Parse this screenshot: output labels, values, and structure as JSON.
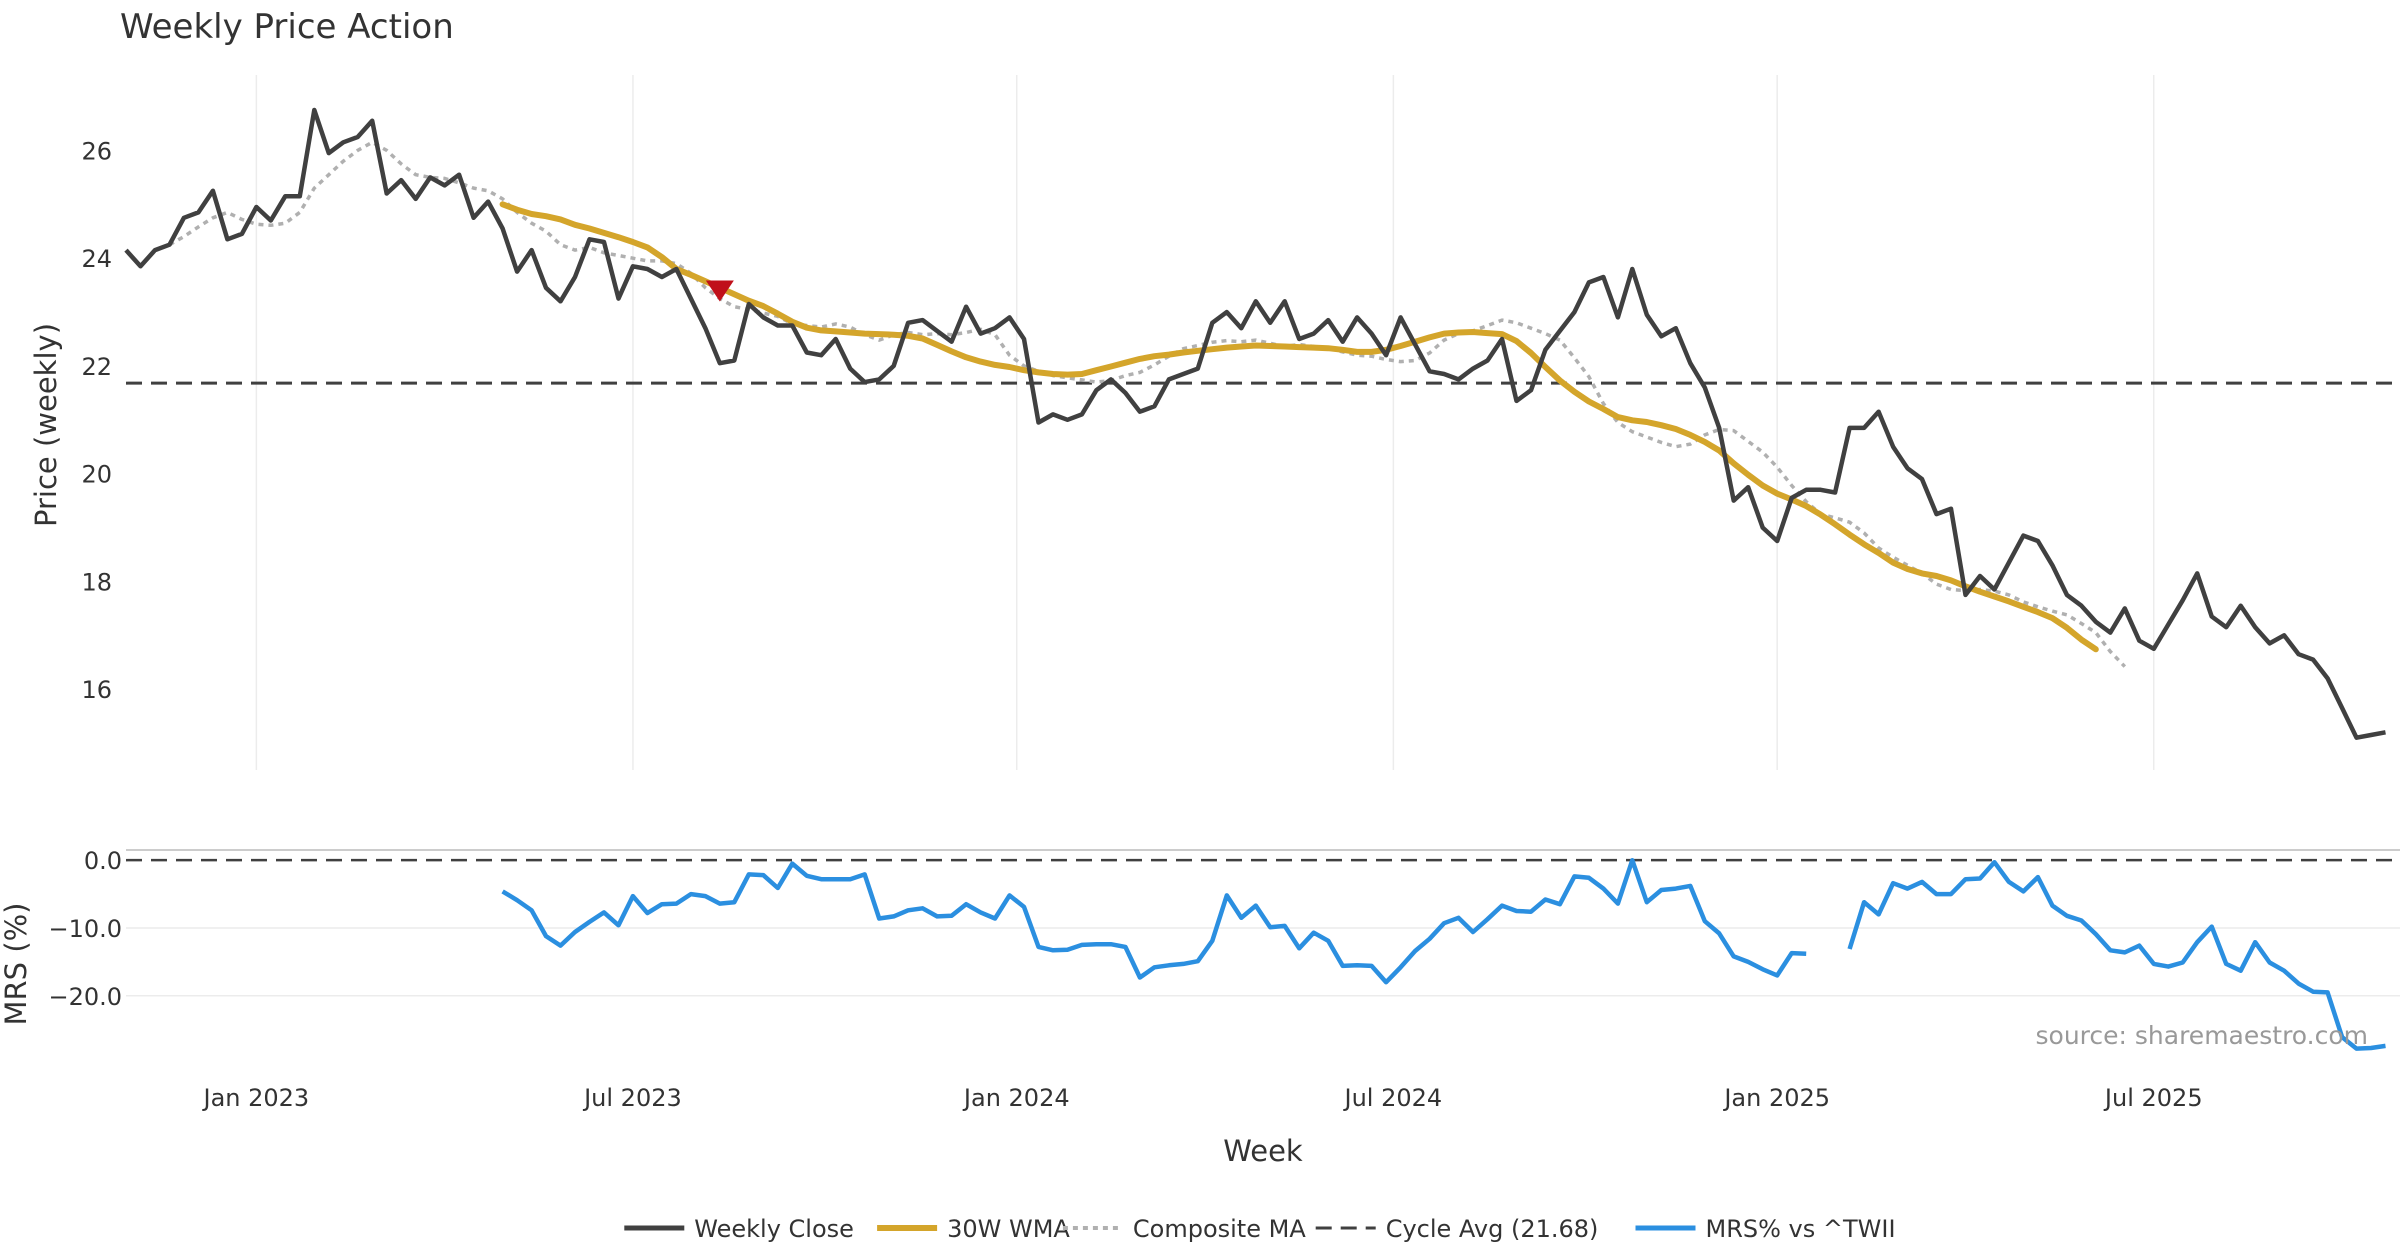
{
  "chart_data": {
    "type": "line",
    "title": "Weekly Price Action",
    "xlabel": "Week",
    "ylabel": "Price (weekly)",
    "ylabel2": "MRS (%)",
    "source": "source: sharemaestro.com",
    "x_ticks": [
      {
        "label": "Jan 2023",
        "week": 9
      },
      {
        "label": "Jul 2023",
        "week": 35
      },
      {
        "label": "Jan 2024",
        "week": 61.5
      },
      {
        "label": "Jul 2024",
        "week": 87.5
      },
      {
        "label": "Jan 2025",
        "week": 114
      },
      {
        "label": "Jul 2025",
        "week": 140
      }
    ],
    "xlim": [
      0,
      157
    ],
    "price_ylim": [
      14.5,
      27.4
    ],
    "price_yticks": [
      16,
      18,
      20,
      22,
      24,
      26
    ],
    "mrs_ylim": [
      -28,
      1.5
    ],
    "mrs_yticks": [
      {
        "value": 0,
        "label": "0.0"
      },
      {
        "value": -10,
        "label": "−10.0"
      },
      {
        "value": -20,
        "label": "−20.0"
      }
    ],
    "cycle_avg": 21.68,
    "colors": {
      "close": "#404040",
      "wma": "#d4a52b",
      "composite": "#b0b0b0",
      "cycle": "#404040",
      "mrs": "#2b8fe0",
      "marker": "#c0101a"
    },
    "marker": {
      "label": "sell signal",
      "week": 41,
      "value": 23.4
    },
    "legend": [
      {
        "label": "Weekly Close",
        "style": "close"
      },
      {
        "label": "30W WMA",
        "style": "wma"
      },
      {
        "label": "Composite MA",
        "style": "composite"
      },
      {
        "label": "Cycle Avg (21.68)",
        "style": "cycle"
      },
      {
        "label": "MRS% vs ^TWII",
        "style": "mrs"
      }
    ],
    "series": [
      {
        "name": "Weekly Close",
        "start_week": 0,
        "values": [
          24.15,
          23.85,
          24.15,
          24.25,
          24.75,
          24.85,
          25.25,
          24.35,
          24.45,
          24.95,
          24.7,
          25.15,
          25.15,
          26.75,
          25.95,
          26.15,
          26.25,
          26.55,
          25.2,
          25.45,
          25.1,
          25.5,
          25.35,
          25.55,
          24.75,
          25.05,
          24.55,
          23.75,
          24.15,
          23.45,
          23.2,
          23.65,
          24.35,
          24.3,
          23.25,
          23.85,
          23.8,
          23.65,
          23.8,
          23.25,
          22.7,
          22.05,
          22.1,
          23.15,
          22.9,
          22.75,
          22.75,
          22.25,
          22.2,
          22.5,
          21.95,
          21.7,
          21.75,
          22.0,
          22.8,
          22.85,
          22.65,
          22.45,
          23.1,
          22.6,
          22.7,
          22.9,
          22.5,
          20.95,
          21.1,
          21.0,
          21.1,
          21.55,
          21.75,
          21.5,
          21.15,
          21.25,
          21.75,
          21.85,
          21.95,
          22.8,
          23.0,
          22.7,
          23.2,
          22.8,
          23.2,
          22.5,
          22.6,
          22.85,
          22.45,
          22.9,
          22.6,
          22.2,
          22.9,
          22.4,
          21.9,
          21.85,
          21.75,
          21.95,
          22.1,
          22.5,
          21.35,
          21.55,
          22.3,
          22.65,
          23.0,
          23.55,
          23.65,
          22.9,
          23.8,
          22.95,
          22.55,
          22.7,
          22.05,
          21.6,
          20.85,
          19.5,
          19.75,
          19.0,
          18.75,
          19.55,
          19.7,
          19.7,
          19.65,
          20.85,
          20.85,
          21.15,
          20.5,
          20.1,
          19.9,
          19.25,
          19.35,
          17.75,
          18.1,
          17.85,
          18.35,
          18.85,
          18.75,
          18.3,
          17.75,
          17.55,
          17.25,
          17.05,
          17.5,
          16.9,
          16.75,
          17.2,
          17.65,
          18.15,
          17.35,
          17.15,
          17.55,
          17.15,
          16.85,
          17.0,
          16.65,
          16.55,
          16.2,
          15.65,
          15.1,
          15.15,
          15.2
        ]
      },
      {
        "name": "30W WMA",
        "start_week": 26,
        "values": [
          25.0,
          24.9,
          24.82,
          24.78,
          24.72,
          24.62,
          24.55,
          24.47,
          24.39,
          24.3,
          24.2,
          24.02,
          23.8,
          23.69,
          23.57,
          23.45,
          23.33,
          23.21,
          23.11,
          22.97,
          22.82,
          22.71,
          22.66,
          22.64,
          22.62,
          22.6,
          22.59,
          22.58,
          22.56,
          22.51,
          22.39,
          22.27,
          22.16,
          22.08,
          22.02,
          21.98,
          21.92,
          21.88,
          21.85,
          21.84,
          21.85,
          21.92,
          21.99,
          22.06,
          22.13,
          22.18,
          22.21,
          22.25,
          22.28,
          22.31,
          22.34,
          22.36,
          22.38,
          22.37,
          22.36,
          22.35,
          22.34,
          22.33,
          22.3,
          22.26,
          22.26,
          22.3,
          22.37,
          22.45,
          22.53,
          22.6,
          22.62,
          22.63,
          22.61,
          22.59,
          22.46,
          22.24,
          21.98,
          21.73,
          21.52,
          21.34,
          21.2,
          21.05,
          20.99,
          20.96,
          20.9,
          20.83,
          20.72,
          20.59,
          20.43,
          20.19,
          19.98,
          19.78,
          19.63,
          19.52,
          19.4,
          19.24,
          19.06,
          18.87,
          18.69,
          18.53,
          18.35,
          18.23,
          18.15,
          18.1,
          18.02,
          17.91,
          17.81,
          17.72,
          17.63,
          17.53,
          17.43,
          17.32,
          17.14,
          16.92,
          16.74
        ]
      },
      {
        "name": "Composite MA",
        "start_week": 3,
        "values": [
          24.25,
          24.4,
          24.58,
          24.75,
          24.85,
          24.72,
          24.63,
          24.61,
          24.65,
          24.85,
          25.3,
          25.55,
          25.8,
          26.0,
          26.15,
          26.0,
          25.75,
          25.55,
          25.5,
          25.48,
          25.4,
          25.3,
          25.25,
          25.1,
          24.85,
          24.65,
          24.5,
          24.25,
          24.15,
          24.2,
          24.1,
          24.05,
          24.0,
          23.95,
          23.95,
          23.9,
          23.72,
          23.45,
          23.25,
          23.1,
          23.05,
          22.98,
          22.92,
          22.78,
          22.75,
          22.72,
          22.78,
          22.72,
          22.58,
          22.48,
          22.58,
          22.62,
          22.58,
          22.6,
          22.58,
          22.62,
          22.68,
          22.58,
          22.2,
          22.0,
          21.9,
          21.82,
          21.78,
          21.74,
          21.7,
          21.73,
          21.82,
          21.88,
          22.02,
          22.18,
          22.32,
          22.38,
          22.44,
          22.47,
          22.45,
          22.48,
          22.42,
          22.36,
          22.4,
          22.36,
          22.33,
          22.26,
          22.2,
          22.18,
          22.12,
          22.08,
          22.1,
          22.24,
          22.48,
          22.6,
          22.65,
          22.75,
          22.85,
          22.8,
          22.7,
          22.6,
          22.48,
          22.15,
          21.8,
          21.3,
          20.95,
          20.78,
          20.68,
          20.58,
          20.5,
          20.55,
          20.72,
          20.82,
          20.8,
          20.6,
          20.4,
          20.12,
          19.78,
          19.48,
          19.25,
          19.18,
          19.1,
          18.9,
          18.62,
          18.45,
          18.3,
          18.15,
          17.95,
          17.85,
          17.83,
          17.85,
          17.82,
          17.75,
          17.62,
          17.53,
          17.45,
          17.38,
          17.22,
          17.05,
          16.7,
          16.42
        ]
      },
      {
        "name": "MRS% vs ^TWII",
        "start_week": 26,
        "values": [
          -4.6,
          -5.9,
          -7.4,
          -11.2,
          -12.6,
          -10.6,
          -9.1,
          -7.7,
          -9.6,
          -5.3,
          -7.8,
          -6.5,
          -6.4,
          -5.0,
          -5.3,
          -6.4,
          -6.2,
          -2.1,
          -2.2,
          -4.1,
          -0.5,
          -2.3,
          -2.8,
          -2.8,
          -2.8,
          -2.1,
          -8.6,
          -8.3,
          -7.4,
          -7.1,
          -8.3,
          -8.2,
          -6.5,
          -7.7,
          -8.6,
          -5.2,
          -6.9,
          -12.8,
          -13.3,
          -13.2,
          -12.5,
          -12.4,
          -12.4,
          -12.8,
          -17.3,
          -15.8,
          -15.5,
          -15.3,
          -14.9,
          -11.9,
          -5.2,
          -8.5,
          -6.7,
          -9.9,
          -9.7,
          -13.0,
          -10.7,
          -11.9,
          -15.6,
          -15.5,
          -15.6,
          -18.0,
          -15.8,
          -13.4,
          -11.6,
          -9.3,
          -8.5,
          -10.6,
          -8.7,
          -6.7,
          -7.5,
          -7.6,
          -5.8,
          -6.5,
          -2.4,
          -2.6,
          -4.2,
          -6.4,
          0.0,
          -6.2,
          -4.4,
          -4.2,
          -3.8,
          -9.0,
          -10.8,
          -14.2,
          -15.0,
          -16.1,
          -17.0,
          -13.7,
          -13.8,
          null,
          null,
          -13.1,
          -6.2,
          -8.0,
          -3.4,
          -4.2,
          -3.2,
          -5.0,
          -5.0,
          -2.8,
          -2.7,
          -0.3,
          -3.2,
          -4.6,
          -2.5,
          -6.7,
          -8.2,
          -8.9,
          -10.9,
          -13.3,
          -13.6,
          -12.6,
          -15.3,
          -15.7,
          -15.1,
          -12.1,
          -9.8,
          -15.3,
          -16.3,
          -12.1,
          -15.1,
          -16.3,
          -18.2,
          -19.4,
          -19.5,
          -26.1,
          -27.8,
          -27.7,
          -27.4
        ]
      }
    ]
  }
}
